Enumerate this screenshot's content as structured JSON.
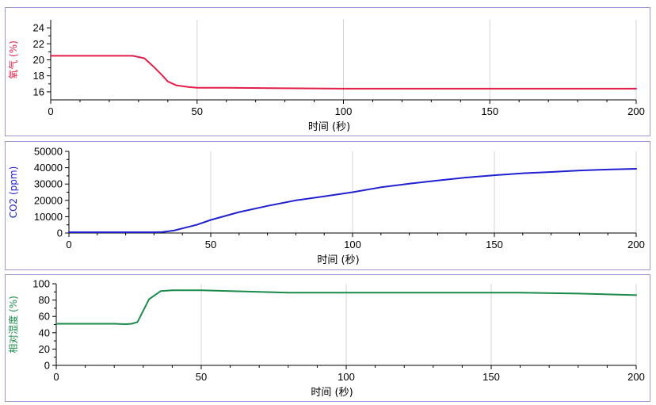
{
  "chart_data": [
    {
      "type": "line",
      "xlabel": "时间 (秒)",
      "ylabel": "氧气 (%)",
      "xlim": [
        0,
        200
      ],
      "ylim": [
        15,
        25
      ],
      "xticks": [
        0,
        50,
        100,
        150,
        200
      ],
      "yticks": [
        16,
        18,
        20,
        22,
        24
      ],
      "grid": true,
      "series": [
        {
          "color": "#e0204a",
          "x": [
            0,
            10,
            20,
            28,
            32,
            35,
            38,
            40,
            43,
            47,
            50,
            60,
            80,
            100,
            120,
            150,
            180,
            200
          ],
          "y": [
            20.5,
            20.5,
            20.5,
            20.5,
            20.2,
            19.2,
            18.1,
            17.3,
            16.8,
            16.6,
            16.5,
            16.5,
            16.45,
            16.4,
            16.4,
            16.4,
            16.4,
            16.4
          ]
        }
      ]
    },
    {
      "type": "line",
      "xlabel": "时间 (秒)",
      "ylabel": "CO2 (ppm)",
      "xlim": [
        0,
        200
      ],
      "ylim": [
        0,
        50000
      ],
      "xticks": [
        0,
        50,
        100,
        150,
        200
      ],
      "yticks": [
        0,
        10000,
        20000,
        30000,
        40000,
        50000
      ],
      "grid": true,
      "series": [
        {
          "color": "#2020d0",
          "x": [
            0,
            10,
            20,
            30,
            33,
            37,
            40,
            45,
            50,
            60,
            70,
            80,
            90,
            100,
            110,
            120,
            130,
            140,
            150,
            160,
            170,
            180,
            190,
            200
          ],
          "y": [
            500,
            500,
            500,
            500,
            600,
            1500,
            2800,
            5000,
            8000,
            12800,
            16600,
            20000,
            22500,
            25000,
            28000,
            30200,
            32200,
            34000,
            35400,
            36600,
            37400,
            38300,
            38900,
            39300
          ]
        }
      ]
    },
    {
      "type": "line",
      "xlabel": "时间 (秒)",
      "ylabel": "相对湿度 (%)",
      "xlim": [
        0,
        200
      ],
      "ylim": [
        0,
        100
      ],
      "xticks": [
        0,
        50,
        100,
        150,
        200
      ],
      "yticks": [
        0,
        20,
        40,
        60,
        80,
        100
      ],
      "grid": true,
      "series": [
        {
          "color": "#1a8a4a",
          "x": [
            0,
            10,
            20,
            24,
            26,
            28,
            32,
            36,
            40,
            46,
            50,
            60,
            70,
            80,
            100,
            120,
            140,
            160,
            180,
            200
          ],
          "y": [
            51,
            51,
            51,
            50.5,
            51,
            53,
            81,
            91,
            92,
            92,
            92,
            91,
            90,
            89,
            89,
            89,
            89,
            89,
            88,
            86
          ]
        }
      ]
    }
  ],
  "colors": {
    "oxygen_label": "#e0204a",
    "co2_label": "#2020d0",
    "humidity_label": "#1a8a4a",
    "grid": "#d4d4d4",
    "panel_border": "#9a9ad0"
  }
}
